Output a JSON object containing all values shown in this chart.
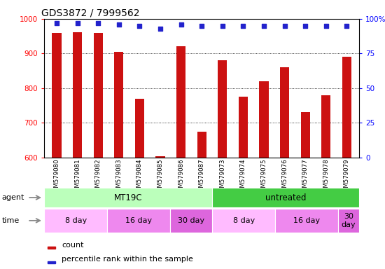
{
  "title": "GDS3872 / 7999562",
  "samples": [
    "GSM579080",
    "GSM579081",
    "GSM579082",
    "GSM579083",
    "GSM579084",
    "GSM579085",
    "GSM579086",
    "GSM579087",
    "GSM579073",
    "GSM579074",
    "GSM579075",
    "GSM579076",
    "GSM579077",
    "GSM579078",
    "GSM579079"
  ],
  "counts": [
    960,
    962,
    960,
    905,
    770,
    603,
    920,
    675,
    880,
    775,
    820,
    860,
    730,
    780,
    890
  ],
  "percentile_ranks": [
    97,
    97,
    97,
    96,
    95,
    93,
    96,
    95,
    95,
    95,
    95,
    95,
    95,
    95,
    95
  ],
  "ylim_left": [
    600,
    1000
  ],
  "ylim_right": [
    0,
    100
  ],
  "yticks_left": [
    600,
    700,
    800,
    900,
    1000
  ],
  "yticks_right": [
    0,
    25,
    50,
    75,
    100
  ],
  "bar_color": "#cc1111",
  "dot_color": "#2222cc",
  "agent_groups": [
    {
      "label": "MT19C",
      "start": 0,
      "end": 8,
      "color": "#bbffbb"
    },
    {
      "label": "untreated",
      "start": 8,
      "end": 15,
      "color": "#44cc44"
    }
  ],
  "time_groups": [
    {
      "label": "8 day",
      "start": 0,
      "end": 3,
      "color": "#ffbbff"
    },
    {
      "label": "16 day",
      "start": 3,
      "end": 6,
      "color": "#ee88ee"
    },
    {
      "label": "30 day",
      "start": 6,
      "end": 8,
      "color": "#dd66dd"
    },
    {
      "label": "8 day",
      "start": 8,
      "end": 11,
      "color": "#ffbbff"
    },
    {
      "label": "16 day",
      "start": 11,
      "end": 14,
      "color": "#ee88ee"
    },
    {
      "label": "30\nday",
      "start": 14,
      "end": 15,
      "color": "#dd66dd"
    }
  ],
  "background_color": "#ffffff",
  "title_fontsize": 10,
  "tick_fontsize": 7.5,
  "bar_width": 0.45
}
